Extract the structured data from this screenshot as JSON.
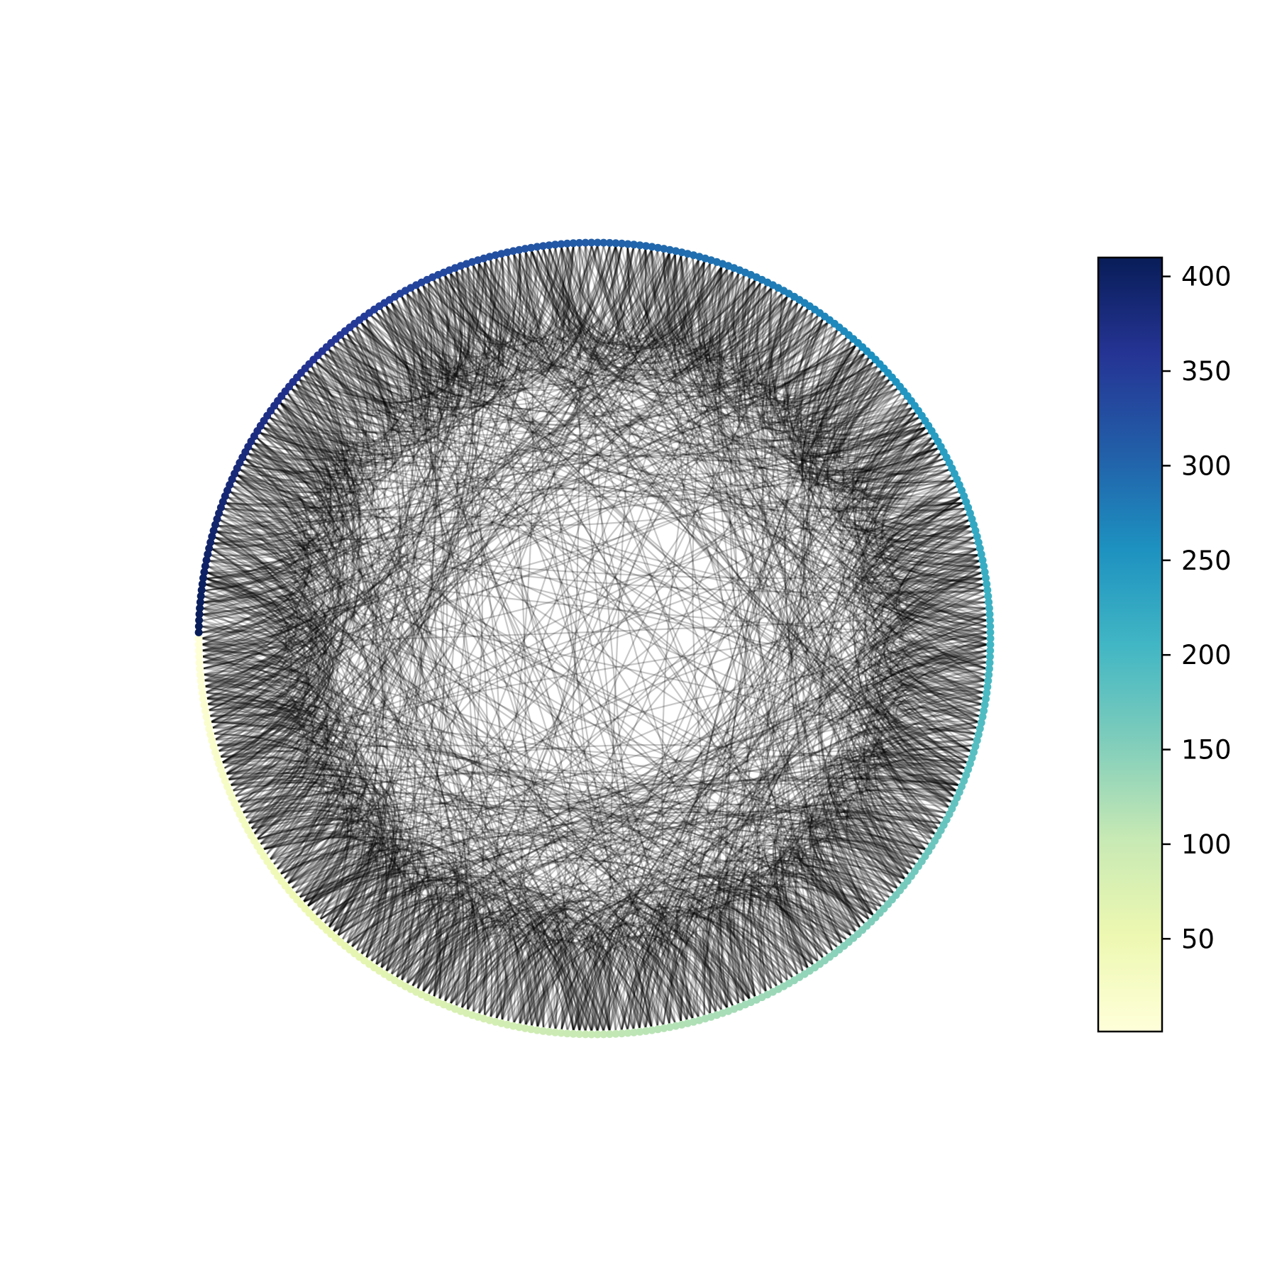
{
  "diagram": {
    "type": "circular network graph",
    "node_count": 410,
    "node_color_scale": "YlGnBu",
    "edge_color": "#000000"
  },
  "colorbar": {
    "min": 1,
    "max": 410,
    "ticks": [
      "50",
      "100",
      "150",
      "200",
      "250",
      "300",
      "350",
      "400"
    ],
    "tick_values": [
      50,
      100,
      150,
      200,
      250,
      300,
      350,
      400
    ],
    "colors": [
      "#ffffd9",
      "#edf8b1",
      "#c7e9b4",
      "#7fcdbb",
      "#41b6c4",
      "#1d91c0",
      "#225ea8",
      "#253494",
      "#081d58"
    ]
  }
}
